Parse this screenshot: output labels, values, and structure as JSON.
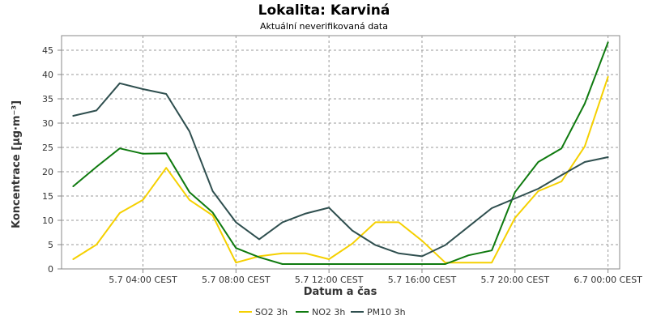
{
  "chart_data": {
    "type": "line",
    "title": "Lokalita: Karviná",
    "subtitle": "Aktuální neverifikovaná data",
    "xlabel": "Datum a čas",
    "ylabel": "Koncentrace [µg·m⁻³]",
    "ylim": [
      0,
      48
    ],
    "yticks": [
      0,
      5,
      10,
      15,
      20,
      25,
      30,
      35,
      40,
      45
    ],
    "x_hours": [
      1,
      2,
      3,
      4,
      5,
      6,
      7,
      8,
      9,
      10,
      11,
      12,
      13,
      14,
      15,
      16,
      17,
      18,
      19,
      20,
      21,
      22,
      23,
      24
    ],
    "xlim_hours": [
      0.5,
      24.5
    ],
    "xticks": [
      {
        "hour": 4,
        "label": "5.7 04:00 CEST"
      },
      {
        "hour": 8,
        "label": "5.7 08:00 CEST"
      },
      {
        "hour": 12,
        "label": "5.7 12:00 CEST"
      },
      {
        "hour": 16,
        "label": "5.7 16:00 CEST"
      },
      {
        "hour": 20,
        "label": "5.7 20:00 CEST"
      },
      {
        "hour": 24,
        "label": "6.7 00:00 CEST"
      }
    ],
    "grid": true,
    "legend_position": "bottom",
    "series": [
      {
        "name": "SO2 3h",
        "color": "#f5d000",
        "values": [
          2,
          5,
          11.5,
          14.2,
          20.8,
          14.2,
          11,
          1.3,
          2.6,
          3.2,
          3.2,
          2,
          5.2,
          9.6,
          9.6,
          5.8,
          1.3,
          1.3,
          1.3,
          10.5,
          16,
          18,
          25.2,
          39.5
        ]
      },
      {
        "name": "NO2 3h",
        "color": "#0f7a0f",
        "values": [
          17,
          21,
          24.8,
          23.7,
          23.8,
          15.8,
          11.6,
          4.3,
          2.4,
          1,
          1,
          1,
          1,
          1,
          1,
          1,
          1,
          2.8,
          3.8,
          15.8,
          22,
          24.8,
          34,
          46.6
        ]
      },
      {
        "name": "PM10 3h",
        "color": "#2f4f4f",
        "values": [
          31.5,
          32.6,
          38.2,
          37,
          36,
          28.3,
          16,
          9.6,
          6.1,
          9.6,
          11.4,
          12.6,
          7.9,
          4.9,
          3.2,
          2.6,
          4.9,
          8.7,
          12.5,
          14.5,
          16.5,
          19.3,
          22,
          23
        ]
      }
    ]
  }
}
